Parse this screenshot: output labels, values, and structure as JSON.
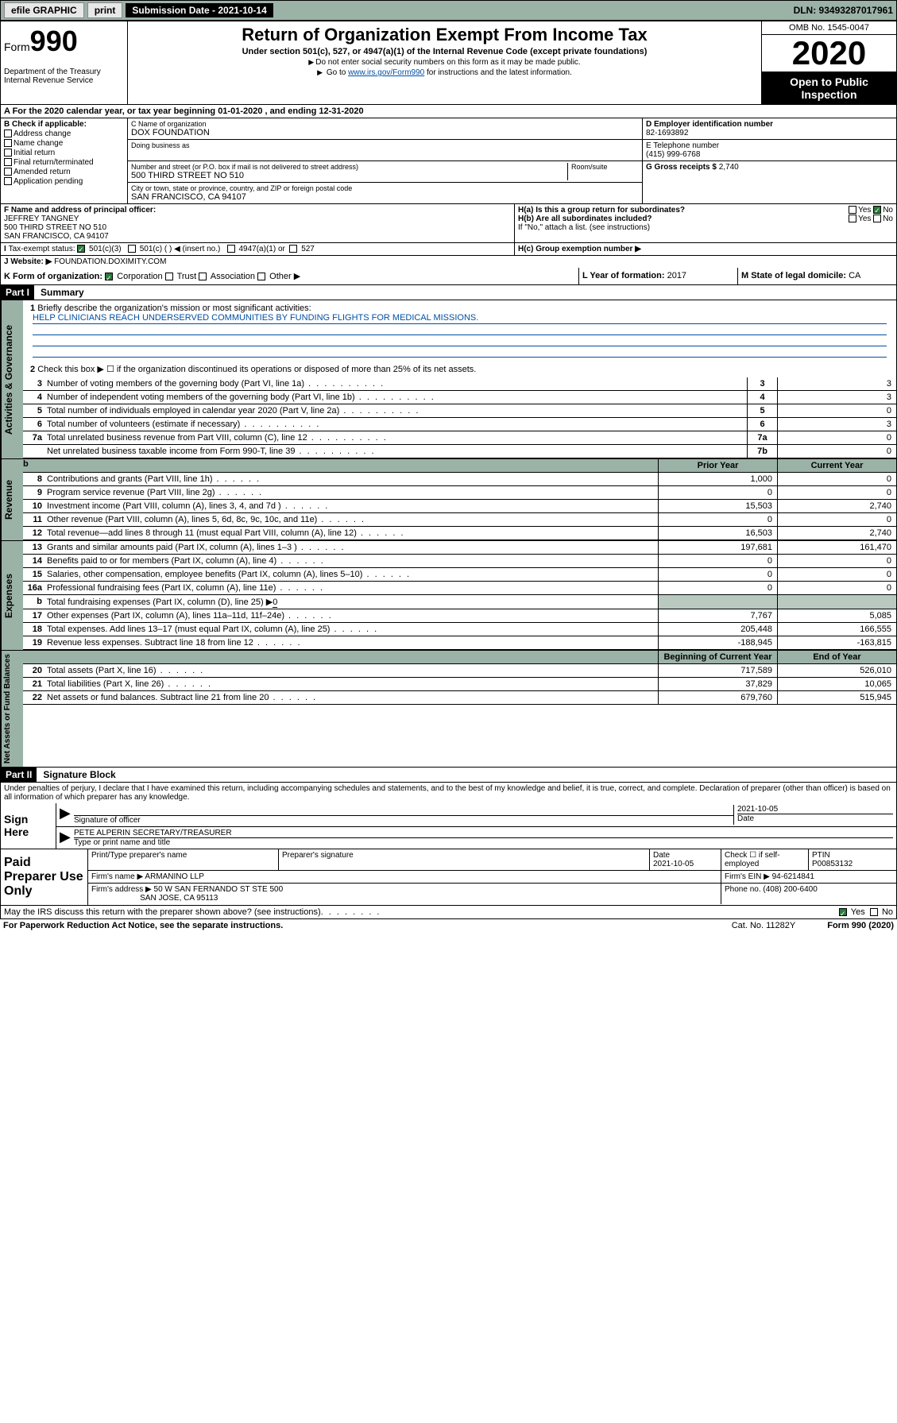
{
  "topbar": {
    "efile": "efile GRAPHIC",
    "print": "print",
    "subdate_label": "Submission Date - 2021-10-14",
    "dln": "DLN: 93493287017961"
  },
  "header": {
    "form_label": "Form",
    "form_num": "990",
    "dept": "Department of the Treasury\nInternal Revenue Service",
    "title": "Return of Organization Exempt From Income Tax",
    "subtitle": "Under section 501(c), 527, or 4947(a)(1) of the Internal Revenue Code (except private foundations)",
    "warn": "Do not enter social security numbers on this form as it may be made public.",
    "goto_pre": "Go to ",
    "goto_link": "www.irs.gov/Form990",
    "goto_post": " for instructions and the latest information.",
    "omb": "OMB No. 1545-0047",
    "year": "2020",
    "open": "Open to Public Inspection"
  },
  "row_a": "A For the 2020 calendar year, or tax year beginning 01-01-2020   , and ending 12-31-2020",
  "box_b": {
    "label": "B Check if applicable:",
    "items": [
      "Address change",
      "Name change",
      "Initial return",
      "Final return/terminated",
      "Amended return",
      "Application pending"
    ]
  },
  "box_c": {
    "name_lbl": "C Name of organization",
    "name": "DOX FOUNDATION",
    "dba_lbl": "Doing business as",
    "addr_lbl": "Number and street (or P.O. box if mail is not delivered to street address)",
    "room_lbl": "Room/suite",
    "addr": "500 THIRD STREET NO 510",
    "city_lbl": "City or town, state or province, country, and ZIP or foreign postal code",
    "city": "SAN FRANCISCO, CA  94107"
  },
  "box_d": {
    "lbl": "D Employer identification number",
    "val": "82-1693892"
  },
  "box_e": {
    "lbl": "E Telephone number",
    "val": "(415) 999-6768"
  },
  "box_g": {
    "lbl": "G Gross receipts $",
    "val": "2,740"
  },
  "box_f": {
    "lbl": "F Name and address of principal officer:",
    "name": "JEFFREY TANGNEY",
    "addr1": "500 THIRD STREET NO 510",
    "addr2": "SAN FRANCISCO, CA  94107"
  },
  "box_h": {
    "a": "H(a)  Is this a group return for subordinates?",
    "b": "H(b)  Are all subordinates included?",
    "note": "If \"No,\" attach a list. (see instructions)",
    "c": "H(c)  Group exemption number ▶",
    "yes": "Yes",
    "no": "No"
  },
  "box_i": {
    "lbl": "Tax-exempt status:",
    "o1": "501(c)(3)",
    "o2": "501(c) (  ) ◀ (insert no.)",
    "o3": "4947(a)(1) or",
    "o4": "527"
  },
  "box_j": {
    "lbl": "Website: ▶",
    "val": "FOUNDATION.DOXIMITY.COM"
  },
  "box_k": {
    "lbl": "K Form of organization:",
    "o1": "Corporation",
    "o2": "Trust",
    "o3": "Association",
    "o4": "Other ▶"
  },
  "box_l": {
    "lbl": "L Year of formation:",
    "val": "2017"
  },
  "box_m": {
    "lbl": "M State of legal domicile:",
    "val": "CA"
  },
  "part1": {
    "hdr": "Part I",
    "title": "Summary",
    "tab1": "Activities & Governance",
    "l1": "Briefly describe the organization's mission or most significant activities:",
    "mission": "HELP CLINICIANS REACH UNDERSERVED COMMUNITIES BY FUNDING FLIGHTS FOR MEDICAL MISSIONS.",
    "l2": "Check this box ▶ ☐  if the organization discontinued its operations or disposed of more than 25% of its net assets.",
    "lines_num": [
      {
        "n": "3",
        "txt": "Number of voting members of the governing body (Part VI, line 1a)",
        "box": "3",
        "val": "3"
      },
      {
        "n": "4",
        "txt": "Number of independent voting members of the governing body (Part VI, line 1b)",
        "box": "4",
        "val": "3"
      },
      {
        "n": "5",
        "txt": "Total number of individuals employed in calendar year 2020 (Part V, line 2a)",
        "box": "5",
        "val": "0"
      },
      {
        "n": "6",
        "txt": "Total number of volunteers (estimate if necessary)",
        "box": "6",
        "val": "3"
      },
      {
        "n": "7a",
        "txt": "Total unrelated business revenue from Part VIII, column (C), line 12",
        "box": "7a",
        "val": "0"
      },
      {
        "n": "",
        "txt": "Net unrelated business taxable income from Form 990-T, line 39",
        "box": "7b",
        "val": "0"
      }
    ],
    "col_hdr": {
      "sp": "b",
      "c1": "Prior Year",
      "c2": "Current Year"
    },
    "tab2": "Revenue",
    "rev": [
      {
        "n": "8",
        "txt": "Contributions and grants (Part VIII, line 1h)",
        "c1": "1,000",
        "c2": "0"
      },
      {
        "n": "9",
        "txt": "Program service revenue (Part VIII, line 2g)",
        "c1": "0",
        "c2": "0"
      },
      {
        "n": "10",
        "txt": "Investment income (Part VIII, column (A), lines 3, 4, and 7d )",
        "c1": "15,503",
        "c2": "2,740"
      },
      {
        "n": "11",
        "txt": "Other revenue (Part VIII, column (A), lines 5, 6d, 8c, 9c, 10c, and 11e)",
        "c1": "0",
        "c2": "0"
      },
      {
        "n": "12",
        "txt": "Total revenue—add lines 8 through 11 (must equal Part VIII, column (A), line 12)",
        "c1": "16,503",
        "c2": "2,740"
      }
    ],
    "tab3": "Expenses",
    "exp": [
      {
        "n": "13",
        "txt": "Grants and similar amounts paid (Part IX, column (A), lines 1–3 )",
        "c1": "197,681",
        "c2": "161,470"
      },
      {
        "n": "14",
        "txt": "Benefits paid to or for members (Part IX, column (A), line 4)",
        "c1": "0",
        "c2": "0"
      },
      {
        "n": "15",
        "txt": "Salaries, other compensation, employee benefits (Part IX, column (A), lines 5–10)",
        "c1": "0",
        "c2": "0"
      },
      {
        "n": "16a",
        "txt": "Professional fundraising fees (Part IX, column (A), line 11e)",
        "c1": "0",
        "c2": "0"
      }
    ],
    "l16b_n": "b",
    "l16b": "Total fundraising expenses (Part IX, column (D), line 25) ▶",
    "l16b_val": "0",
    "exp2": [
      {
        "n": "17",
        "txt": "Other expenses (Part IX, column (A), lines 11a–11d, 11f–24e)",
        "c1": "7,767",
        "c2": "5,085"
      },
      {
        "n": "18",
        "txt": "Total expenses. Add lines 13–17 (must equal Part IX, column (A), line 25)",
        "c1": "205,448",
        "c2": "166,555"
      },
      {
        "n": "19",
        "txt": "Revenue less expenses. Subtract line 18 from line 12",
        "c1": "-188,945",
        "c2": "-163,815"
      }
    ],
    "tab4": "Net Assets or Fund Balances",
    "col_hdr2": {
      "c1": "Beginning of Current Year",
      "c2": "End of Year"
    },
    "net": [
      {
        "n": "20",
        "txt": "Total assets (Part X, line 16)",
        "c1": "717,589",
        "c2": "526,010"
      },
      {
        "n": "21",
        "txt": "Total liabilities (Part X, line 26)",
        "c1": "37,829",
        "c2": "10,065"
      },
      {
        "n": "22",
        "txt": "Net assets or fund balances. Subtract line 21 from line 20",
        "c1": "679,760",
        "c2": "515,945"
      }
    ]
  },
  "part2": {
    "hdr": "Part II",
    "title": "Signature Block",
    "decl": "Under penalties of perjury, I declare that I have examined this return, including accompanying schedules and statements, and to the best of my knowledge and belief, it is true, correct, and complete. Declaration of preparer (other than officer) is based on all information of which preparer has any knowledge.",
    "sign_here": "Sign Here",
    "sig_officer": "Signature of officer",
    "date": "2021-10-05",
    "date_lbl": "Date",
    "officer_name": "PETE ALPERIN  SECRETARY/TREASURER",
    "type_lbl": "Type or print name and title"
  },
  "prep": {
    "label": "Paid Preparer Use Only",
    "col1": "Print/Type preparer's name",
    "col2": "Preparer's signature",
    "col3_lbl": "Date",
    "col3": "2021-10-05",
    "col4": "Check ☐ if self-employed",
    "col5_lbl": "PTIN",
    "col5": "P00853132",
    "firm_name_lbl": "Firm's name    ▶",
    "firm_name": "ARMANINO LLP",
    "firm_ein_lbl": "Firm's EIN ▶",
    "firm_ein": "94-6214841",
    "firm_addr_lbl": "Firm's address ▶",
    "firm_addr1": "50 W SAN FERNANDO ST STE 500",
    "firm_addr2": "SAN JOSE, CA  95113",
    "phone_lbl": "Phone no.",
    "phone": "(408) 200-6400"
  },
  "footer": {
    "discuss": "May the IRS discuss this return with the preparer shown above? (see instructions)",
    "yes": "Yes",
    "no": "No"
  },
  "bottom": {
    "pra": "For Paperwork Reduction Act Notice, see the separate instructions.",
    "cat": "Cat. No. 11282Y",
    "form": "Form 990 (2020)"
  }
}
